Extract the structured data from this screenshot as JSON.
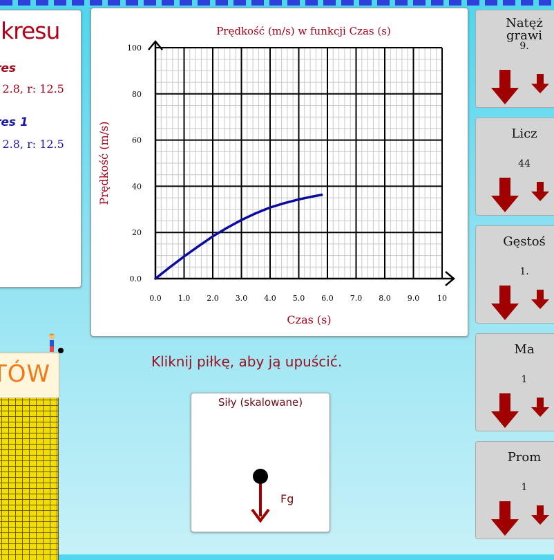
{
  "legend": {
    "title": "kresu",
    "entries": [
      {
        "name": "res",
        "params": ": 2.8, r: 12.5",
        "color": "#a3001a"
      },
      {
        "name": "res 1",
        "params": ": 2.8, r: 12.5",
        "color": "#1a1aa6"
      }
    ]
  },
  "chart_data": {
    "type": "line",
    "title": "Prędkość (m/s) w funkcji Czas (s)",
    "xlabel": "Czas (s)",
    "ylabel": "Prędkość (m/s)",
    "xlim": [
      0,
      10
    ],
    "ylim": [
      0,
      100
    ],
    "xticks": [
      "0.0",
      "1.0",
      "2.0",
      "3.0",
      "4.0",
      "5.0",
      "6.0",
      "7.0",
      "8.0",
      "9.0",
      "10"
    ],
    "yticks": [
      "0.0",
      "20",
      "40",
      "60",
      "80",
      "100"
    ],
    "grid": true,
    "series": [
      {
        "color": "#0b0b9e",
        "x": [
          0,
          0.5,
          1.0,
          1.5,
          2.0,
          2.5,
          3.0,
          3.5,
          4.0,
          4.5,
          5.0,
          5.5,
          5.8
        ],
        "y": [
          0,
          4.9,
          9.6,
          14.0,
          18.3,
          22.0,
          25.4,
          28.3,
          30.8,
          32.7,
          34.3,
          35.6,
          36.3
        ]
      }
    ]
  },
  "hint": "Kliknij piłkę, aby ją upuścić.",
  "forces": {
    "title": "Siły (skalowane)",
    "fg_label": "Fg"
  },
  "controls": [
    {
      "label": "Natęż\ngrawi",
      "value": "9."
    },
    {
      "label": "Licz",
      "value": "44"
    },
    {
      "label": "Gęstoś",
      "value": "1."
    },
    {
      "label": "Ma",
      "value": "1"
    },
    {
      "label": "Prom",
      "value": "1"
    }
  ],
  "tower_sign": "TÓW",
  "colors": {
    "arrow": "#a00000",
    "accent": "#9b1020"
  }
}
